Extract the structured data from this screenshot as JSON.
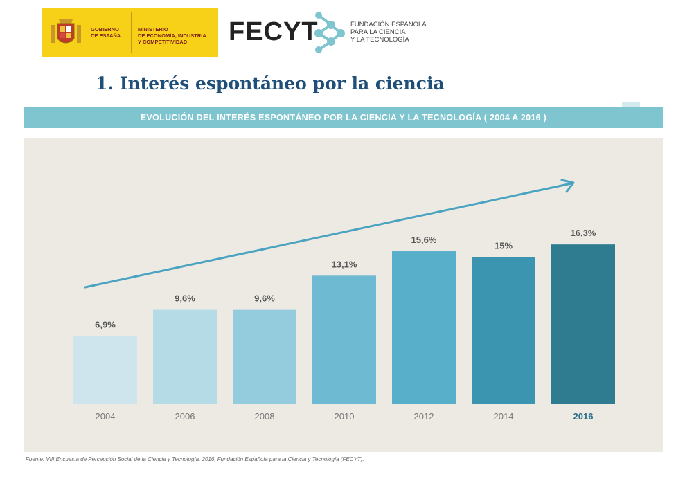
{
  "header": {
    "gov_logo": {
      "text_left": "GOBIERNO\nDE ESPAÑA",
      "text_right": "MINISTERIO\nDE ECONOMÍA, INDUSTRIA\nY COMPETITIVIDAD",
      "background": "#f7d117",
      "text_color": "#7a1e1e"
    },
    "fecyt_logo": {
      "wordmark": "FECYT",
      "description": "FUNDACIÓN ESPAÑOLA\nPARA LA CIENCIA\nY LA TECNOLOGÍA",
      "mark_color": "#7fc5d0"
    }
  },
  "page_title": "1. Interés espontáneo por la ciencia",
  "band_title": "EVOLUCIÓN DEL INTERÉS ESPONTÁNEO POR LA CIENCIA Y LA TECNOLOGÍA ( 2004 A 2016 )",
  "source": "Fuente: VIII Encuesta de Percepción Social de la Ciencia y Tecnología. 2016, Fundación Española para la Ciencia y Tecnología (FECYT).",
  "colors": {
    "title": "#1f4e79",
    "band": "#7fc5d0",
    "panel": "#edeae3",
    "arrow": "#4aa3c0",
    "label": "#555555",
    "highlight_label": "#2a6f8a"
  },
  "chart_data": {
    "type": "bar",
    "categories": [
      "2004",
      "2006",
      "2008",
      "2010",
      "2012",
      "2014",
      "2016"
    ],
    "values": [
      6.9,
      9.6,
      9.6,
      13.1,
      15.6,
      15,
      16.3
    ],
    "data_labels": [
      "6,9%",
      "9,6%",
      "9,6%",
      "13,1%",
      "15,6%",
      "15%",
      "16,3%"
    ],
    "bar_colors": [
      "#cfe5ee",
      "#b4dbe6",
      "#95ccdd",
      "#6fbad3",
      "#58afca",
      "#3b94b0",
      "#2f7b90"
    ],
    "highlight_category": "2016",
    "title": "EVOLUCIÓN DEL INTERÉS ESPONTÁNEO POR LA CIENCIA Y LA TECNOLOGÍA ( 2004 A 2016 )",
    "xlabel": "",
    "ylabel": "",
    "ylim": [
      0,
      20
    ],
    "grid": false,
    "legend": "none",
    "trend_arrow": true
  }
}
